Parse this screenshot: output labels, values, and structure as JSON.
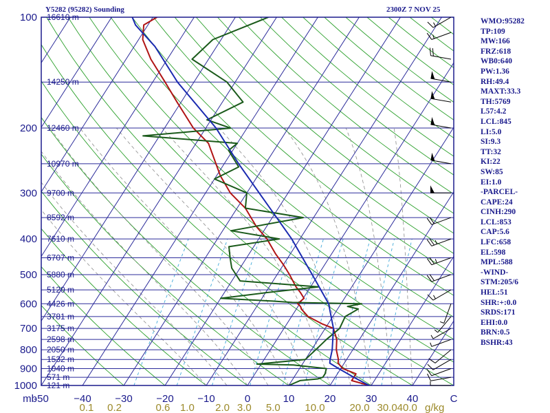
{
  "header": {
    "station": "Y5282 (95282) Sounding",
    "datetime": "2300Z  7 NOV 25"
  },
  "stats": [
    "WMO:95282",
    "TP:109",
    "MW:166",
    "FRZ:618",
    "WB0:640",
    "PW:1.36",
    "RH:49.4",
    "MAXT:33.3",
    "TH:5769",
    "L57:4.2",
    "LCL:845",
    "LI:5.0",
    "SI:9.3",
    "TT:32",
    "KI:22",
    "SW:85",
    "EI:1.0",
    "-PARCEL-",
    "CAPE:24",
    "CINH:290",
    "LCL:853",
    "CAP:5.6",
    "LFC:658",
    "EL:598",
    "MPL:588",
    "-WIND-",
    "STM:205/6",
    "HEL:51",
    "SHR:+:0.0",
    "SRDS:171",
    "EHI:0.0",
    "BRN:0.5",
    "BSHR:43"
  ],
  "chart_data": {
    "type": "line",
    "title": "Y5282 (95282) Sounding",
    "subtitle": "2300Z  7 NOV 25",
    "xlabel": "C",
    "ylabel": "mb",
    "x_units_label": "C",
    "y_units_label": "mb",
    "mixing_units_label": "g/kg",
    "xlim": [
      -50,
      50
    ],
    "ylim": [
      1000,
      100
    ],
    "y_scale": "log",
    "skew": "skew-T",
    "pressure_ticks": [
      {
        "value": 100,
        "label": "100"
      },
      {
        "value": 200,
        "label": "200"
      },
      {
        "value": 300,
        "label": "300"
      },
      {
        "value": 400,
        "label": "400"
      },
      {
        "value": 500,
        "label": "500"
      },
      {
        "value": 600,
        "label": "600"
      },
      {
        "value": 700,
        "label": "700"
      },
      {
        "value": 800,
        "label": "800"
      },
      {
        "value": 900,
        "label": "900"
      },
      {
        "value": 1000,
        "label": "1000"
      }
    ],
    "temperature_ticks": [
      {
        "value": -50,
        "label": "-50"
      },
      {
        "value": -40,
        "label": "−40"
      },
      {
        "value": -30,
        "label": "−30"
      },
      {
        "value": -20,
        "label": "−20"
      },
      {
        "value": -10,
        "label": "−10"
      },
      {
        "value": 0,
        "label": "0"
      },
      {
        "value": 10,
        "label": "10"
      },
      {
        "value": 20,
        "label": "20"
      },
      {
        "value": 30,
        "label": "30"
      },
      {
        "value": 40,
        "label": "40"
      },
      {
        "value": 50,
        "label": "C"
      }
    ],
    "mixing_ratio_ticks": [
      {
        "value": 0.1,
        "label": "0.1"
      },
      {
        "value": 0.2,
        "label": "0.2"
      },
      {
        "value": 0.6,
        "label": "0.6"
      },
      {
        "value": 1.0,
        "label": "1.0"
      },
      {
        "value": 2.0,
        "label": "2.0"
      },
      {
        "value": 3.0,
        "label": "3.0"
      },
      {
        "value": 5.0,
        "label": "5.0"
      },
      {
        "value": 10.0,
        "label": "10.0"
      },
      {
        "value": 20.0,
        "label": "20.0"
      },
      {
        "value": 30.0,
        "label": "30.0"
      },
      {
        "value": 40.0,
        "label": "40.0"
      }
    ],
    "height_labels": [
      {
        "pressure": 100,
        "label": "16610 m"
      },
      {
        "pressure": 150,
        "label": "14250 m"
      },
      {
        "pressure": 200,
        "label": "12460 m"
      },
      {
        "pressure": 250,
        "label": "10970 m"
      },
      {
        "pressure": 300,
        "label": "9700 m"
      },
      {
        "pressure": 350,
        "label": "8592 m"
      },
      {
        "pressure": 400,
        "label": "7610 m"
      },
      {
        "pressure": 450,
        "label": "6707 m"
      },
      {
        "pressure": 500,
        "label": "5880 m"
      },
      {
        "pressure": 550,
        "label": "5120 m"
      },
      {
        "pressure": 600,
        "label": "4426 m"
      },
      {
        "pressure": 650,
        "label": "3781 m"
      },
      {
        "pressure": 700,
        "label": "3175 m"
      },
      {
        "pressure": 750,
        "label": "2598 m"
      },
      {
        "pressure": 800,
        "label": "2050 m"
      },
      {
        "pressure": 850,
        "label": "1532 m"
      },
      {
        "pressure": 900,
        "label": "1040 m"
      },
      {
        "pressure": 950,
        "label": "571 m"
      },
      {
        "pressure": 1000,
        "label": "121 m"
      }
    ],
    "series": [
      {
        "color": "#b01414",
        "points": [
          [
            1000,
            29.5
          ],
          [
            970,
            24.5
          ],
          [
            930,
            24.5
          ],
          [
            900,
            20.5
          ],
          [
            870,
            18.5
          ],
          [
            850,
            18
          ],
          [
            800,
            16
          ],
          [
            750,
            14.5
          ],
          [
            700,
            12
          ],
          [
            680,
            8.5
          ],
          [
            650,
            4
          ],
          [
            620,
            1.2
          ],
          [
            610,
            0.6
          ],
          [
            600,
            -0.5
          ],
          [
            580,
            0.2
          ],
          [
            560,
            -1.5
          ],
          [
            540,
            -3.5
          ],
          [
            500,
            -7
          ],
          [
            470,
            -10
          ],
          [
            440,
            -13.5
          ],
          [
            400,
            -18
          ],
          [
            370,
            -22.5
          ],
          [
            330,
            -28
          ],
          [
            300,
            -34
          ],
          [
            270,
            -39
          ],
          [
            250,
            -42
          ],
          [
            220,
            -47
          ],
          [
            200,
            -53
          ],
          [
            170,
            -61
          ],
          [
            150,
            -67
          ],
          [
            130,
            -74
          ],
          [
            115,
            -79
          ],
          [
            105,
            -81
          ],
          [
            100,
            -79
          ]
        ]
      },
      {
        "color": "#1a5a1a",
        "points": [
          [
            1000,
            10
          ],
          [
            985,
            11
          ],
          [
            970,
            12
          ],
          [
            960,
            16
          ],
          [
            950,
            17
          ],
          [
            930,
            17
          ],
          [
            900,
            16.5
          ],
          [
            880,
            8
          ],
          [
            875,
            -1
          ],
          [
            850,
            10
          ],
          [
            800,
            11
          ],
          [
            750,
            12
          ],
          [
            700,
            13.5
          ],
          [
            650,
            13
          ],
          [
            620,
            15
          ],
          [
            610,
            12
          ],
          [
            600,
            15
          ],
          [
            595,
            -2
          ],
          [
            590,
            -7
          ],
          [
            580,
            -20
          ],
          [
            560,
            -10
          ],
          [
            540,
            2
          ],
          [
            520,
            -18
          ],
          [
            480,
            -22
          ],
          [
            450,
            -24
          ],
          [
            420,
            -26
          ],
          [
            400,
            -15
          ],
          [
            380,
            -28
          ],
          [
            350,
            -12.5
          ],
          [
            330,
            -28
          ],
          [
            300,
            -30
          ],
          [
            275,
            -40
          ],
          [
            255,
            -36
          ],
          [
            230,
            -41
          ],
          [
            220,
            -40
          ],
          [
            210,
            -64
          ],
          [
            200,
            -44
          ],
          [
            190,
            -51
          ],
          [
            170,
            -45
          ],
          [
            150,
            -52
          ],
          [
            130,
            -64
          ],
          [
            115,
            -62
          ],
          [
            100,
            -52
          ]
        ]
      },
      {
        "color": "#1a2ab0",
        "points": [
          [
            1000,
            29.5
          ],
          [
            950,
            24.5
          ],
          [
            900,
            19.5
          ],
          [
            870,
            16.5
          ],
          [
            850,
            16
          ],
          [
            800,
            15
          ],
          [
            700,
            12
          ],
          [
            600,
            7
          ],
          [
            500,
            -1.5
          ],
          [
            400,
            -12
          ],
          [
            300,
            -27
          ],
          [
            250,
            -36.5
          ],
          [
            200,
            -47.5
          ],
          [
            150,
            -64
          ],
          [
            120,
            -75
          ],
          [
            105,
            -83
          ],
          [
            100,
            -85
          ]
        ]
      }
    ],
    "wind_barbs": [
      {
        "pressure": 1000,
        "dir": 270,
        "kt": 8
      },
      {
        "pressure": 950,
        "dir": 260,
        "kt": 10
      },
      {
        "pressure": 900,
        "dir": 250,
        "kt": 10
      },
      {
        "pressure": 850,
        "dir": 240,
        "kt": 12
      },
      {
        "pressure": 800,
        "dir": 230,
        "kt": 10
      },
      {
        "pressure": 750,
        "dir": 250,
        "kt": 8
      },
      {
        "pressure": 700,
        "dir": 240,
        "kt": 8
      },
      {
        "pressure": 650,
        "dir": 220,
        "kt": 5
      },
      {
        "pressure": 600,
        "dir": 200,
        "kt": 5
      },
      {
        "pressure": 550,
        "dir": 240,
        "kt": 15
      },
      {
        "pressure": 500,
        "dir": 250,
        "kt": 20
      },
      {
        "pressure": 450,
        "dir": 250,
        "kt": 25
      },
      {
        "pressure": 400,
        "dir": 250,
        "kt": 25
      },
      {
        "pressure": 350,
        "dir": 250,
        "kt": 20
      },
      {
        "pressure": 300,
        "dir": 270,
        "kt": 50
      },
      {
        "pressure": 250,
        "dir": 280,
        "kt": 50
      },
      {
        "pressure": 200,
        "dir": 280,
        "kt": 50
      },
      {
        "pressure": 170,
        "dir": 280,
        "kt": 50
      },
      {
        "pressure": 150,
        "dir": 280,
        "kt": 50
      },
      {
        "pressure": 130,
        "dir": 280,
        "kt": 20
      },
      {
        "pressure": 110,
        "dir": 250,
        "kt": 15
      },
      {
        "pressure": 100,
        "dir": 240,
        "kt": 15
      }
    ],
    "grid": true,
    "colors": {
      "border": "#1a1a8c",
      "isobar": "#2b2b9a",
      "isotherm": "#2b2b9a",
      "dry_adiabat": "#2ca02c",
      "moist_adiabat": "#8a8a8a",
      "mixing_ratio": "#3fa9d9",
      "mixing_ratio_label": "#9c8a2a"
    }
  }
}
